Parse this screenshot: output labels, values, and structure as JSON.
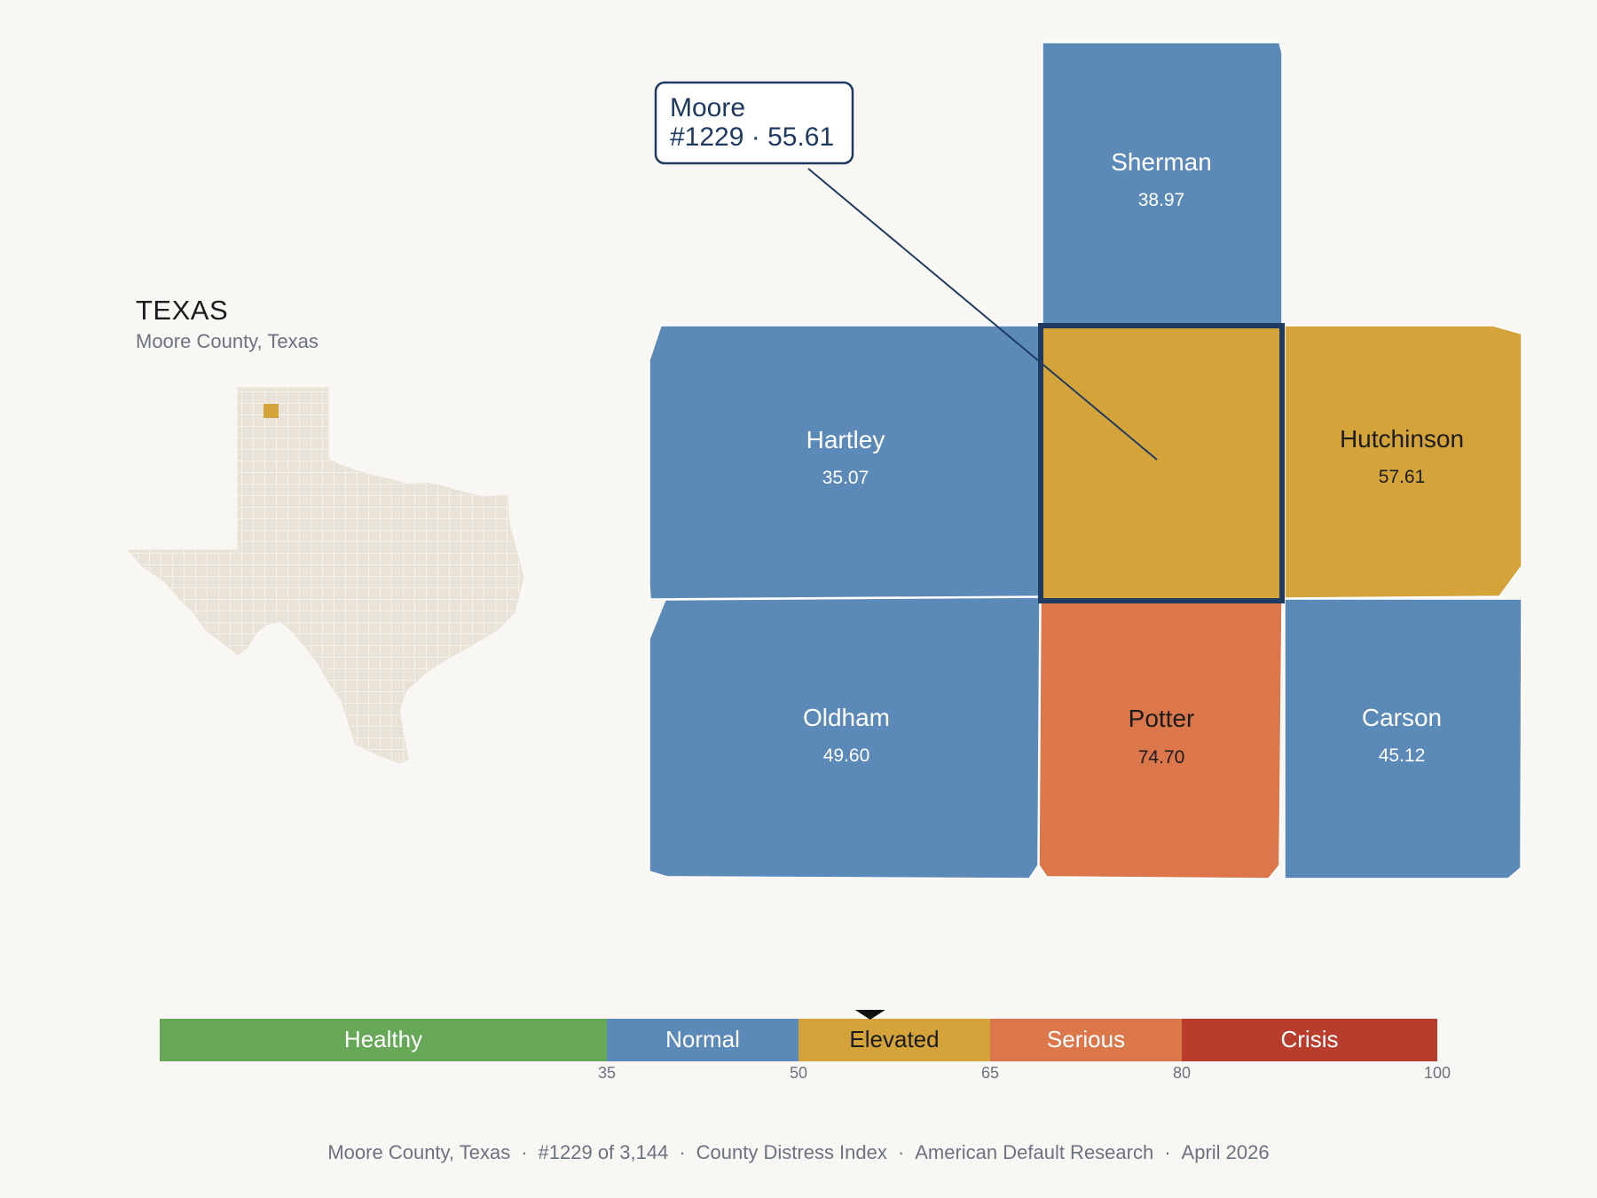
{
  "state": {
    "title": "TEXAS",
    "subtitle": "Moore County, Texas"
  },
  "focus": {
    "name": "Moore",
    "detail": "#1229 · 55.61",
    "score": 55.61,
    "color": "#d4a43a"
  },
  "counties": [
    {
      "name": "Sherman",
      "value": "38.97",
      "color": "#5b89b8",
      "label_color": "#ffffff"
    },
    {
      "name": "Hartley",
      "value": "35.07",
      "color": "#5b89b8",
      "label_color": "#ffffff"
    },
    {
      "name": "Hutchinson",
      "value": "57.61",
      "color": "#d4a43a",
      "label_color": "#1c1c1c"
    },
    {
      "name": "Oldham",
      "value": "49.60",
      "color": "#5b89b8",
      "label_color": "#ffffff"
    },
    {
      "name": "Potter",
      "value": "74.70",
      "color": "#db774a",
      "label_color": "#1c1c1c"
    },
    {
      "name": "Carson",
      "value": "45.12",
      "color": "#5b89b8",
      "label_color": "#ffffff"
    }
  ],
  "scale": {
    "min": 0,
    "max": 100,
    "marker_value": 55.61,
    "bands": [
      {
        "label": "Healthy",
        "from": 0,
        "to": 35,
        "color": "#67a758",
        "text_color": "#ffffff"
      },
      {
        "label": "Normal",
        "from": 35,
        "to": 50,
        "color": "#5b89b8",
        "text_color": "#ffffff"
      },
      {
        "label": "Elevated",
        "from": 50,
        "to": 65,
        "color": "#d4a43a",
        "text_color": "#1c1c1c"
      },
      {
        "label": "Serious",
        "from": 65,
        "to": 80,
        "color": "#db774a",
        "text_color": "#ffffff"
      },
      {
        "label": "Crisis",
        "from": 80,
        "to": 100,
        "color": "#b83d2c",
        "text_color": "#ffffff"
      }
    ],
    "ticks": [
      "35",
      "50",
      "65",
      "80",
      "100"
    ]
  },
  "footer": {
    "items": [
      "Moore County, Texas",
      "#1229 of 3,144",
      "County Distress Index",
      "American Default Research",
      "April 2026"
    ]
  },
  "colors": {
    "background": "#f9f7f4",
    "state_fill": "#e8e2d7",
    "highlight_border": "#1f3a60"
  }
}
